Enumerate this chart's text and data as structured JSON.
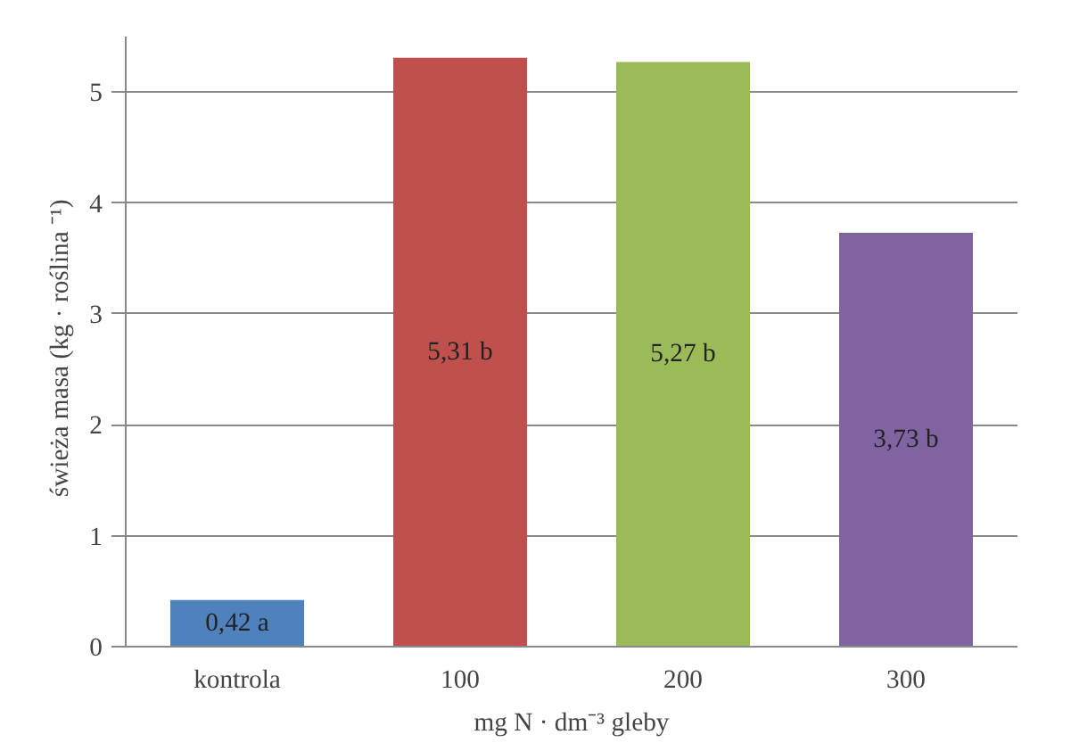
{
  "chart_data": {
    "type": "bar",
    "xlabel": "mg N · dm⁻³ gleby",
    "ylabel": "świeża masa  (kg  · roślina ⁻¹)",
    "categories": [
      "kontrola",
      "100",
      "200",
      "300"
    ],
    "values": [
      0.42,
      5.31,
      5.27,
      3.73
    ],
    "colors": [
      "#4f81bd",
      "#c0504d",
      "#9bbb59",
      "#8064a2"
    ],
    "value_labels": [
      "0,42 a",
      "5,31 b",
      "5,27 b",
      "3,73 b"
    ],
    "ylim": [
      0,
      5.5
    ],
    "yticks": [
      0,
      1,
      2,
      3,
      4,
      5
    ],
    "grid": "y"
  }
}
